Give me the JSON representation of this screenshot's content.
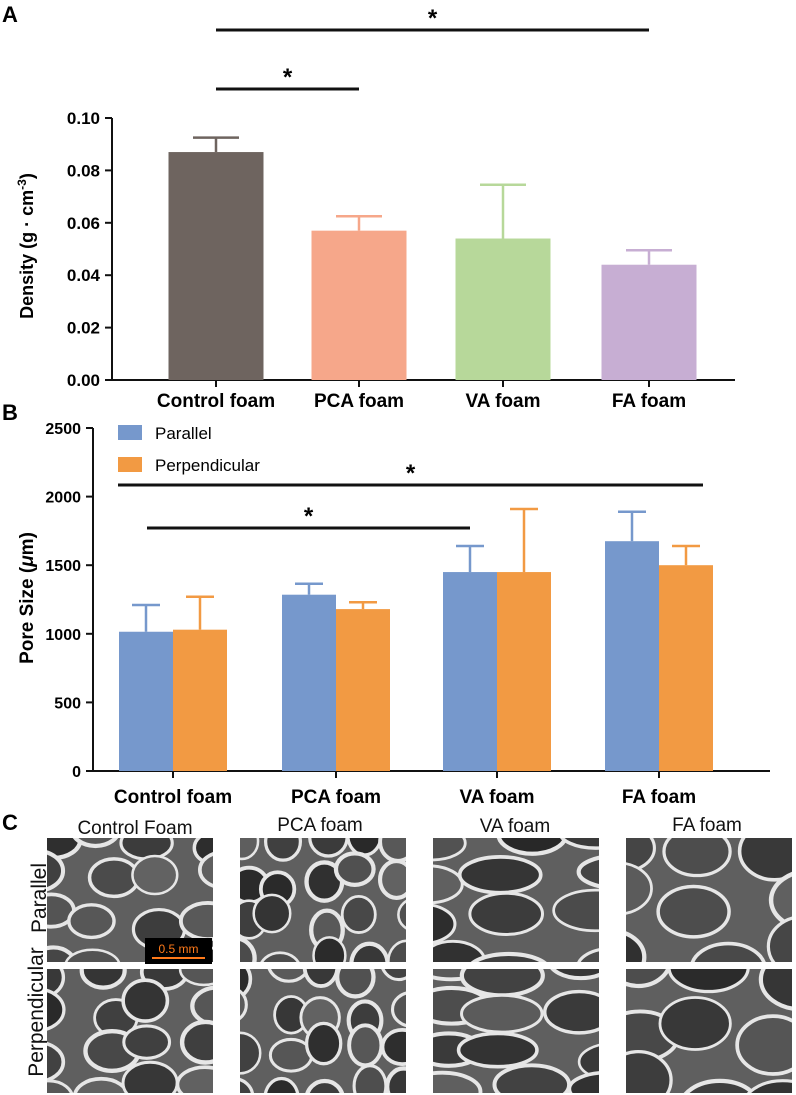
{
  "chart_data": [
    {
      "panel": "A",
      "type": "bar",
      "ylabel": "Density (g · cm",
      "ylabel_sup": "-3",
      "ylabel_close": ")",
      "categories": [
        "Control foam",
        "PCA foam",
        "VA foam",
        "FA foam"
      ],
      "values": [
        0.087,
        0.057,
        0.054,
        0.044
      ],
      "errors": [
        0.0055,
        0.0055,
        0.0205,
        0.0055
      ],
      "colors": [
        "#6e645f",
        "#f6a78a",
        "#b7d89a",
        "#c7aed3"
      ],
      "ylim": [
        0,
        0.1
      ],
      "yticks": [
        "0.00",
        "0.02",
        "0.04",
        "0.06",
        "0.08",
        "0.10"
      ],
      "significance": [
        {
          "from": 0,
          "to": 1,
          "label": "*"
        },
        {
          "from": 0,
          "to": 3,
          "label": "*"
        }
      ]
    },
    {
      "panel": "B",
      "type": "bar",
      "ylabel": "Pore Size (",
      "ylabel_mu": "μ",
      "ylabel_close": "m)",
      "categories": [
        "Control foam",
        "PCA foam",
        "VA foam",
        "FA foam"
      ],
      "series": [
        {
          "name": "Parallel",
          "color": "#7698cc",
          "values": [
            1015,
            1285,
            1450,
            1675
          ],
          "errors": [
            195,
            80,
            190,
            215
          ]
        },
        {
          "name": "Perpendicular",
          "color": "#f29a43",
          "values": [
            1030,
            1180,
            1450,
            1500
          ],
          "errors": [
            240,
            50,
            460,
            140
          ]
        }
      ],
      "ylim": [
        0,
        2500
      ],
      "yticks": [
        "0",
        "500",
        "1000",
        "1500",
        "2000",
        "2500"
      ],
      "significance": [
        {
          "from": 0,
          "to": 2,
          "label": "*"
        },
        {
          "from": 0,
          "to": 3,
          "label": "*"
        }
      ]
    }
  ],
  "panel_c": {
    "letter": "C",
    "columns": [
      "Control Foam",
      "PCA foam",
      "VA foam",
      "FA foam"
    ],
    "rows": [
      "Parallel",
      "Perpendicular"
    ],
    "scale_bar": "0.5 mm"
  }
}
